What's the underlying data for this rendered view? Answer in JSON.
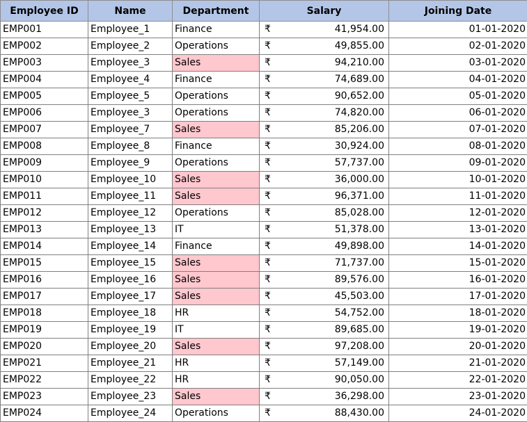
{
  "headers": {
    "employee_id": "Employee ID",
    "name": "Name",
    "department": "Department",
    "salary": "Salary",
    "joining_date": "Joining Date"
  },
  "currency_symbol": "₹",
  "highlight_color": "#ffc7ce",
  "header_color": "#b4c6e7",
  "rows": [
    {
      "id": "EMP001",
      "name": "Employee_1",
      "dept": "Finance",
      "salary": "41,954.00",
      "date": "01-01-2020",
      "highlight": false
    },
    {
      "id": "EMP002",
      "name": "Employee_2",
      "dept": "Operations",
      "salary": "49,855.00",
      "date": "02-01-2020",
      "highlight": false
    },
    {
      "id": "EMP003",
      "name": "Employee_3",
      "dept": "Sales",
      "salary": "94,210.00",
      "date": "03-01-2020",
      "highlight": true
    },
    {
      "id": "EMP004",
      "name": "Employee_4",
      "dept": "Finance",
      "salary": "74,689.00",
      "date": "04-01-2020",
      "highlight": false
    },
    {
      "id": "EMP005",
      "name": "Employee_5",
      "dept": "Operations",
      "salary": "90,652.00",
      "date": "05-01-2020",
      "highlight": false
    },
    {
      "id": "EMP006",
      "name": "Employee_3",
      "dept": "Operations",
      "salary": "74,820.00",
      "date": "06-01-2020",
      "highlight": false
    },
    {
      "id": "EMP007",
      "name": "Employee_7",
      "dept": "Sales",
      "salary": "85,206.00",
      "date": "07-01-2020",
      "highlight": true
    },
    {
      "id": "EMP008",
      "name": "Employee_8",
      "dept": "Finance",
      "salary": "30,924.00",
      "date": "08-01-2020",
      "highlight": false
    },
    {
      "id": "EMP009",
      "name": "Employee_9",
      "dept": "Operations",
      "salary": "57,737.00",
      "date": "09-01-2020",
      "highlight": false
    },
    {
      "id": "EMP010",
      "name": "Employee_10",
      "dept": "Sales",
      "salary": "36,000.00",
      "date": "10-01-2020",
      "highlight": true
    },
    {
      "id": "EMP011",
      "name": "Employee_11",
      "dept": "Sales",
      "salary": "96,371.00",
      "date": "11-01-2020",
      "highlight": true
    },
    {
      "id": "EMP012",
      "name": "Employee_12",
      "dept": "Operations",
      "salary": "85,028.00",
      "date": "12-01-2020",
      "highlight": false
    },
    {
      "id": "EMP013",
      "name": "Employee_13",
      "dept": "IT",
      "salary": "51,378.00",
      "date": "13-01-2020",
      "highlight": false
    },
    {
      "id": "EMP014",
      "name": "Employee_14",
      "dept": "Finance",
      "salary": "49,898.00",
      "date": "14-01-2020",
      "highlight": false
    },
    {
      "id": "EMP015",
      "name": "Employee_15",
      "dept": "Sales",
      "salary": "71,737.00",
      "date": "15-01-2020",
      "highlight": true
    },
    {
      "id": "EMP016",
      "name": "Employee_16",
      "dept": "Sales",
      "salary": "89,576.00",
      "date": "16-01-2020",
      "highlight": true
    },
    {
      "id": "EMP017",
      "name": "Employee_17",
      "dept": "Sales",
      "salary": "45,503.00",
      "date": "17-01-2020",
      "highlight": true
    },
    {
      "id": "EMP018",
      "name": "Employee_18",
      "dept": "HR",
      "salary": "54,752.00",
      "date": "18-01-2020",
      "highlight": false
    },
    {
      "id": "EMP019",
      "name": "Employee_19",
      "dept": "IT",
      "salary": "89,685.00",
      "date": "19-01-2020",
      "highlight": false
    },
    {
      "id": "EMP020",
      "name": "Employee_20",
      "dept": "Sales",
      "salary": "97,208.00",
      "date": "20-01-2020",
      "highlight": true
    },
    {
      "id": "EMP021",
      "name": "Employee_21",
      "dept": "HR",
      "salary": "57,149.00",
      "date": "21-01-2020",
      "highlight": false
    },
    {
      "id": "EMP022",
      "name": "Employee_22",
      "dept": "HR",
      "salary": "90,050.00",
      "date": "22-01-2020",
      "highlight": false
    },
    {
      "id": "EMP023",
      "name": "Employee_23",
      "dept": "Sales",
      "salary": "36,298.00",
      "date": "23-01-2020",
      "highlight": true
    },
    {
      "id": "EMP024",
      "name": "Employee_24",
      "dept": "Operations",
      "salary": "88,430.00",
      "date": "24-01-2020",
      "highlight": false
    }
  ]
}
